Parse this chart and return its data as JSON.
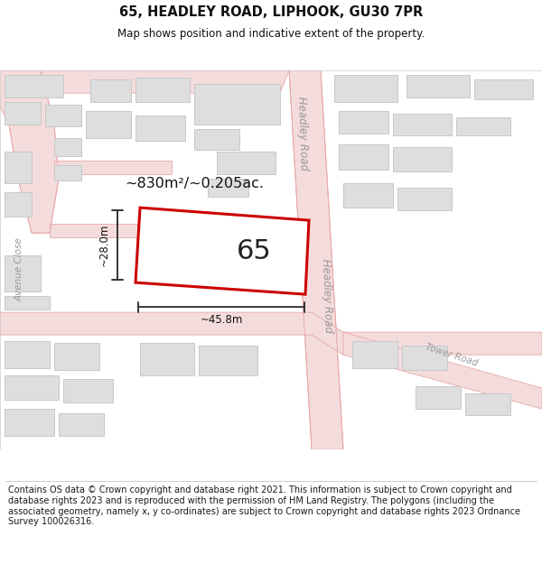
{
  "title_line1": "65, HEADLEY ROAD, LIPHOOK, GU30 7PR",
  "title_line2": "Map shows position and indicative extent of the property.",
  "footer_text": "Contains OS data © Crown copyright and database right 2021. This information is subject to Crown copyright and database rights 2023 and is reproduced with the permission of HM Land Registry. The polygons (including the associated geometry, namely x, y co-ordinates) are subject to Crown copyright and database rights 2023 Ordnance Survey 100026316.",
  "area_text": "~830m²/~0.205ac.",
  "property_number": "65",
  "dim_width": "~45.8m",
  "dim_height": "~28.0m",
  "road_label_1": "Headley Road",
  "road_label_2": "Headley Road",
  "road_label_avenue": "Avenue Close",
  "road_label_tower": "Tower Road",
  "road_fill": "#f5dcdc",
  "road_stroke": "#e8a8a8",
  "building_fill": "#dedede",
  "building_stroke": "#c8c8c8",
  "highlight_stroke": "#cc0000",
  "highlight_fill": "#ffffff",
  "dim_color": "#333333",
  "map_bg": "#ffffff",
  "title_bg": "#ffffff",
  "footer_bg": "#ffffff"
}
